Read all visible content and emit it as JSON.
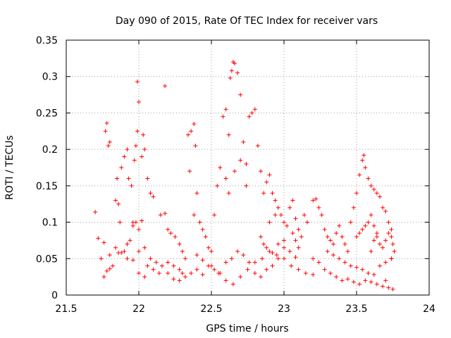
{
  "chart_data": {
    "type": "scatter",
    "title": "Day 090 of 2015, Rate Of TEC Index for receiver vars",
    "xlabel": "GPS time / hours",
    "ylabel": "ROTI / TECUs",
    "xlim": [
      21.5,
      24
    ],
    "ylim": [
      0,
      0.35
    ],
    "grid": true,
    "legend": "none",
    "marker": "+",
    "color": "#ff0000",
    "x_ticks": [
      "21.5",
      "22",
      "22.5",
      "23",
      "23.5",
      "24"
    ],
    "y_ticks": [
      "0",
      "0.05",
      "0.1",
      "0.15",
      "0.2",
      "0.25",
      "0.3",
      "0.35"
    ],
    "series": [
      {
        "name": "ROTI",
        "points": [
          [
            21.7,
            0.114
          ],
          [
            21.72,
            0.078
          ],
          [
            21.74,
            0.05
          ],
          [
            21.76,
            0.072
          ],
          [
            21.77,
            0.225
          ],
          [
            21.78,
            0.236
          ],
          [
            21.79,
            0.205
          ],
          [
            21.8,
            0.21
          ],
          [
            21.78,
            0.033
          ],
          [
            21.8,
            0.036
          ],
          [
            21.82,
            0.04
          ],
          [
            21.84,
            0.13
          ],
          [
            21.85,
            0.16
          ],
          [
            21.86,
            0.125
          ],
          [
            21.87,
            0.1
          ],
          [
            21.88,
            0.175
          ],
          [
            21.9,
            0.19
          ],
          [
            21.92,
            0.2
          ],
          [
            21.93,
            0.16
          ],
          [
            21.95,
            0.15
          ],
          [
            21.96,
            0.1
          ],
          [
            21.97,
            0.185
          ],
          [
            21.98,
            0.205
          ],
          [
            21.99,
            0.225
          ],
          [
            21.99,
            0.293
          ],
          [
            22.0,
            0.265
          ],
          [
            22.02,
            0.19
          ],
          [
            22.03,
            0.22
          ],
          [
            22.04,
            0.2
          ],
          [
            22.06,
            0.16
          ],
          [
            22.08,
            0.14
          ],
          [
            22.1,
            0.135
          ],
          [
            21.76,
            0.025
          ],
          [
            21.8,
            0.055
          ],
          [
            21.84,
            0.065
          ],
          [
            21.88,
            0.058
          ],
          [
            21.92,
            0.05
          ],
          [
            21.96,
            0.048
          ],
          [
            22.0,
            0.03
          ],
          [
            22.04,
            0.025
          ],
          [
            22.06,
            0.04
          ],
          [
            22.1,
            0.035
          ],
          [
            22.14,
            0.03
          ],
          [
            22.18,
            0.287
          ],
          [
            22.15,
            0.11
          ],
          [
            22.18,
            0.112
          ],
          [
            22.2,
            0.09
          ],
          [
            22.22,
            0.085
          ],
          [
            22.25,
            0.08
          ],
          [
            22.28,
            0.07
          ],
          [
            22.3,
            0.06
          ],
          [
            22.32,
            0.05
          ],
          [
            22.2,
            0.045
          ],
          [
            22.24,
            0.04
          ],
          [
            22.28,
            0.035
          ],
          [
            22.3,
            0.03
          ],
          [
            22.34,
            0.22
          ],
          [
            22.36,
            0.225
          ],
          [
            22.38,
            0.235
          ],
          [
            22.39,
            0.205
          ],
          [
            22.35,
            0.17
          ],
          [
            22.38,
            0.11
          ],
          [
            22.4,
            0.14
          ],
          [
            22.42,
            0.1
          ],
          [
            22.44,
            0.09
          ],
          [
            22.46,
            0.08
          ],
          [
            22.48,
            0.065
          ],
          [
            22.5,
            0.06
          ],
          [
            22.52,
            0.11
          ],
          [
            22.54,
            0.15
          ],
          [
            22.56,
            0.175
          ],
          [
            22.58,
            0.245
          ],
          [
            22.6,
            0.255
          ],
          [
            22.62,
            0.22
          ],
          [
            22.63,
            0.298
          ],
          [
            22.64,
            0.308
          ],
          [
            22.65,
            0.32
          ],
          [
            22.66,
            0.318
          ],
          [
            22.68,
            0.305
          ],
          [
            22.7,
            0.275
          ],
          [
            22.72,
            0.21
          ],
          [
            22.74,
            0.18
          ],
          [
            22.76,
            0.245
          ],
          [
            22.78,
            0.25
          ],
          [
            22.8,
            0.255
          ],
          [
            22.82,
            0.205
          ],
          [
            22.84,
            0.17
          ],
          [
            22.86,
            0.14
          ],
          [
            22.88,
            0.155
          ],
          [
            22.9,
            0.165
          ],
          [
            22.92,
            0.14
          ],
          [
            22.94,
            0.13
          ],
          [
            22.6,
            0.16
          ],
          [
            22.62,
            0.14
          ],
          [
            22.66,
            0.17
          ],
          [
            22.7,
            0.185
          ],
          [
            22.74,
            0.15
          ],
          [
            22.5,
            0.04
          ],
          [
            22.55,
            0.03
          ],
          [
            22.6,
            0.02
          ],
          [
            22.65,
            0.015
          ],
          [
            22.7,
            0.025
          ],
          [
            22.75,
            0.035
          ],
          [
            22.8,
            0.045
          ],
          [
            22.85,
            0.05
          ],
          [
            22.9,
            0.06
          ],
          [
            22.95,
            0.055
          ],
          [
            23.0,
            0.05
          ],
          [
            23.05,
            0.04
          ],
          [
            23.1,
            0.035
          ],
          [
            23.15,
            0.03
          ],
          [
            23.2,
            0.028
          ],
          [
            22.4,
            0.055
          ],
          [
            22.44,
            0.048
          ],
          [
            22.48,
            0.04
          ],
          [
            22.52,
            0.035
          ],
          [
            22.56,
            0.03
          ],
          [
            22.6,
            0.045
          ],
          [
            22.64,
            0.05
          ],
          [
            22.68,
            0.06
          ],
          [
            22.72,
            0.055
          ],
          [
            22.76,
            0.045
          ],
          [
            22.8,
            0.03
          ],
          [
            22.84,
            0.025
          ],
          [
            22.88,
            0.035
          ],
          [
            22.92,
            0.04
          ],
          [
            22.96,
            0.05
          ],
          [
            23.0,
            0.065
          ],
          [
            23.0,
            0.1
          ],
          [
            23.04,
            0.12
          ],
          [
            23.06,
            0.13
          ],
          [
            23.08,
            0.105
          ],
          [
            23.1,
            0.09
          ],
          [
            23.12,
            0.08
          ],
          [
            23.14,
            0.11
          ],
          [
            23.16,
            0.1
          ],
          [
            23.2,
            0.13
          ],
          [
            23.22,
            0.132
          ],
          [
            23.24,
            0.12
          ],
          [
            23.26,
            0.11
          ],
          [
            23.28,
            0.09
          ],
          [
            23.3,
            0.08
          ],
          [
            23.32,
            0.075
          ],
          [
            23.34,
            0.07
          ],
          [
            23.36,
            0.085
          ],
          [
            23.38,
            0.095
          ],
          [
            23.4,
            0.08
          ],
          [
            23.42,
            0.07
          ],
          [
            23.44,
            0.06
          ],
          [
            23.46,
            0.1
          ],
          [
            23.48,
            0.12
          ],
          [
            23.5,
            0.14
          ],
          [
            23.52,
            0.165
          ],
          [
            23.54,
            0.185
          ],
          [
            23.55,
            0.192
          ],
          [
            23.56,
            0.175
          ],
          [
            23.58,
            0.16
          ],
          [
            23.6,
            0.15
          ],
          [
            23.62,
            0.145
          ],
          [
            23.64,
            0.14
          ],
          [
            23.66,
            0.135
          ],
          [
            23.68,
            0.12
          ],
          [
            23.7,
            0.115
          ],
          [
            23.72,
            0.1
          ],
          [
            23.74,
            0.08
          ],
          [
            23.75,
            0.07
          ],
          [
            23.76,
            0.06
          ],
          [
            23.74,
            0.05
          ],
          [
            23.2,
            0.05
          ],
          [
            23.24,
            0.045
          ],
          [
            23.28,
            0.035
          ],
          [
            23.32,
            0.03
          ],
          [
            23.36,
            0.025
          ],
          [
            23.4,
            0.02
          ],
          [
            23.44,
            0.022
          ],
          [
            23.48,
            0.018
          ],
          [
            23.52,
            0.015
          ],
          [
            23.56,
            0.02
          ],
          [
            23.6,
            0.018
          ],
          [
            23.64,
            0.015
          ],
          [
            23.68,
            0.012
          ],
          [
            23.72,
            0.01
          ],
          [
            23.75,
            0.008
          ],
          [
            23.7,
            0.02
          ],
          [
            23.3,
            0.06
          ],
          [
            23.34,
            0.055
          ],
          [
            23.38,
            0.05
          ],
          [
            23.42,
            0.045
          ],
          [
            23.46,
            0.04
          ],
          [
            23.5,
            0.038
          ],
          [
            23.54,
            0.035
          ],
          [
            23.58,
            0.03
          ],
          [
            23.62,
            0.028
          ],
          [
            23.66,
            0.04
          ],
          [
            23.7,
            0.045
          ],
          [
            23.74,
            0.05
          ],
          [
            22.0,
            0.06
          ],
          [
            22.04,
            0.065
          ],
          [
            22.08,
            0.05
          ],
          [
            22.12,
            0.045
          ],
          [
            22.16,
            0.04
          ],
          [
            22.2,
            0.03
          ],
          [
            22.24,
            0.022
          ],
          [
            22.28,
            0.02
          ],
          [
            22.32,
            0.025
          ],
          [
            22.36,
            0.03
          ],
          [
            22.4,
            0.035
          ],
          [
            22.44,
            0.028
          ],
          [
            21.9,
            0.06
          ],
          [
            21.94,
            0.075
          ],
          [
            21.98,
            0.1
          ],
          [
            22.02,
            0.102
          ],
          [
            22.0,
            0.09
          ],
          [
            21.96,
            0.095
          ],
          [
            21.92,
            0.07
          ],
          [
            21.86,
            0.058
          ],
          [
            22.9,
            0.1
          ],
          [
            22.94,
            0.11
          ],
          [
            22.96,
            0.12
          ],
          [
            22.98,
            0.11
          ],
          [
            23.02,
            0.095
          ],
          [
            23.06,
            0.085
          ],
          [
            23.08,
            0.075
          ],
          [
            23.1,
            0.065
          ],
          [
            22.84,
            0.08
          ],
          [
            22.86,
            0.07
          ],
          [
            22.88,
            0.065
          ],
          [
            22.92,
            0.058
          ],
          [
            22.96,
            0.07
          ],
          [
            23.0,
            0.075
          ],
          [
            23.04,
            0.06
          ],
          [
            23.08,
            0.052
          ],
          [
            23.6,
            0.06
          ],
          [
            23.62,
            0.075
          ],
          [
            23.64,
            0.08
          ],
          [
            23.66,
            0.07
          ],
          [
            23.68,
            0.065
          ],
          [
            23.7,
            0.075
          ],
          [
            23.72,
            0.085
          ],
          [
            23.74,
            0.09
          ],
          [
            23.5,
            0.08
          ],
          [
            23.52,
            0.085
          ],
          [
            23.54,
            0.09
          ],
          [
            23.56,
            0.095
          ],
          [
            23.58,
            0.1
          ],
          [
            23.6,
            0.11
          ],
          [
            23.62,
            0.095
          ],
          [
            23.64,
            0.085
          ]
        ]
      }
    ]
  }
}
